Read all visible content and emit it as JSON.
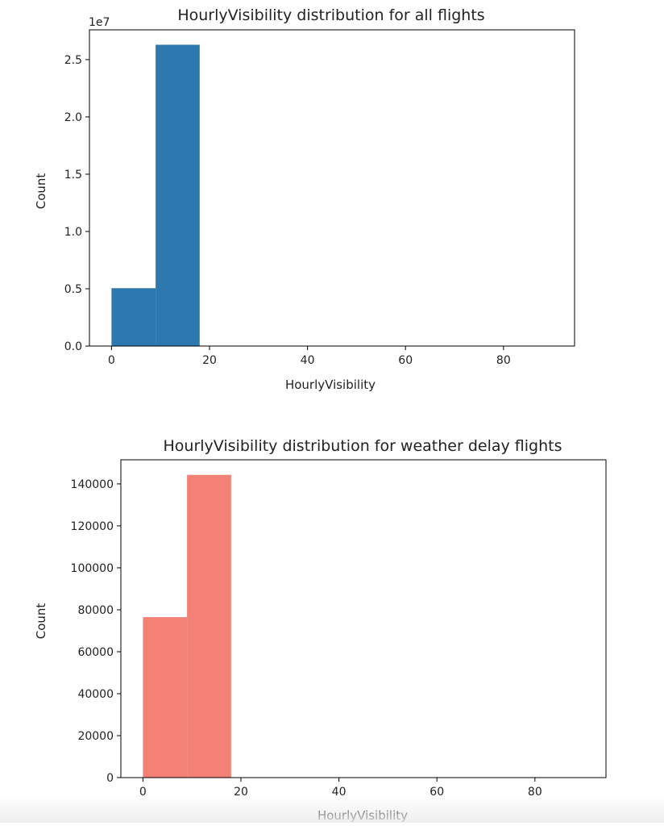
{
  "chart_data": [
    {
      "type": "bar",
      "title": "HourlyVisibility distribution for all flights",
      "xlabel": "HourlyVisibility",
      "ylabel": "Count",
      "y_offset_label": "1e7",
      "xlim": [
        -4.5,
        94.5
      ],
      "ylim": [
        0,
        27600000
      ],
      "x_ticks": [
        0,
        20,
        40,
        60,
        80
      ],
      "x_tick_labels": [
        "0",
        "20",
        "40",
        "60",
        "80"
      ],
      "y_ticks": [
        0,
        5000000,
        10000000,
        15000000,
        20000000,
        25000000
      ],
      "y_tick_labels": [
        "0.0",
        "0.5",
        "1.0",
        "1.5",
        "2.0",
        "2.5"
      ],
      "bin_edges": [
        0,
        9,
        18,
        27,
        36,
        45,
        54,
        63,
        72,
        81,
        90
      ],
      "values": [
        5050000,
        26300000,
        0,
        0,
        0,
        0,
        0,
        0,
        0,
        0
      ],
      "color": "#2e78b0",
      "grid": false
    },
    {
      "type": "bar",
      "title": "HourlyVisibility distribution for weather delay flights",
      "xlabel": "HourlyVisibility",
      "ylabel": "Count",
      "xlim": [
        -4.5,
        94.5
      ],
      "ylim": [
        0,
        151500
      ],
      "x_ticks": [
        0,
        20,
        40,
        60,
        80
      ],
      "x_tick_labels": [
        "0",
        "20",
        "40",
        "60",
        "80"
      ],
      "y_ticks": [
        0,
        20000,
        40000,
        60000,
        80000,
        100000,
        120000,
        140000
      ],
      "y_tick_labels": [
        "0",
        "20000",
        "40000",
        "60000",
        "80000",
        "100000",
        "120000",
        "140000"
      ],
      "bin_edges": [
        0,
        9,
        18,
        27,
        36,
        45,
        54,
        63,
        72,
        81,
        90
      ],
      "values": [
        76500,
        144300,
        0,
        0,
        0,
        0,
        0,
        0,
        0,
        0
      ],
      "color": "#f38176",
      "grid": false
    }
  ]
}
